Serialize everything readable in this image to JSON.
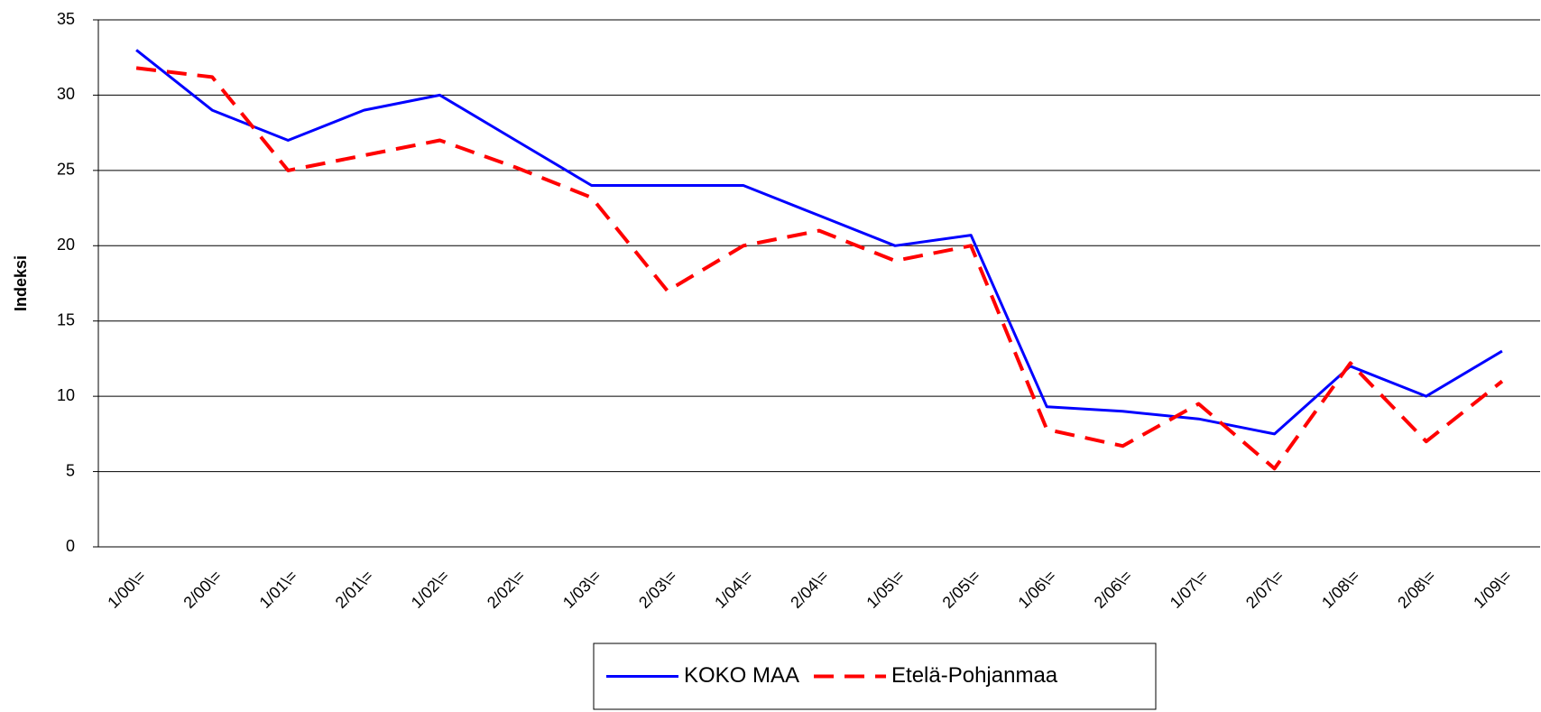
{
  "chart_data": {
    "type": "line",
    "y_label": "Indeksi",
    "categories": [
      "1/00\\=",
      "2/00\\=",
      "1/01\\=",
      "2/01\\=",
      "1/02\\=",
      "2/02\\=",
      "1/03\\=",
      "2/03\\=",
      "1/04\\=",
      "2/04\\=",
      "1/05\\=",
      "2/05\\=",
      "1/06\\=",
      "2/06\\=",
      "1/07\\=",
      "2/07\\=",
      "1/08\\=",
      "2/08\\=",
      "1/09\\="
    ],
    "series": [
      {
        "name": "KOKO MAA",
        "color": "#0000ff",
        "dashed": false,
        "values": [
          33,
          29,
          27,
          29,
          30,
          27,
          24,
          24,
          24,
          22,
          20,
          20.7,
          9.3,
          9,
          8.5,
          7.5,
          12,
          10,
          13
        ]
      },
      {
        "name": "Etelä-Pohjanmaa",
        "color": "#ff0000",
        "dashed": true,
        "values": [
          31.8,
          31.2,
          25,
          26,
          27,
          25.2,
          23.2,
          17,
          20,
          21,
          19,
          20,
          7.8,
          6.7,
          9.5,
          5.2,
          12.2,
          7,
          11
        ]
      }
    ],
    "ylim": [
      0,
      35
    ],
    "yticks": [
      0,
      5,
      10,
      15,
      20,
      25,
      30,
      35
    ],
    "grid": true,
    "legend": "bottom"
  }
}
